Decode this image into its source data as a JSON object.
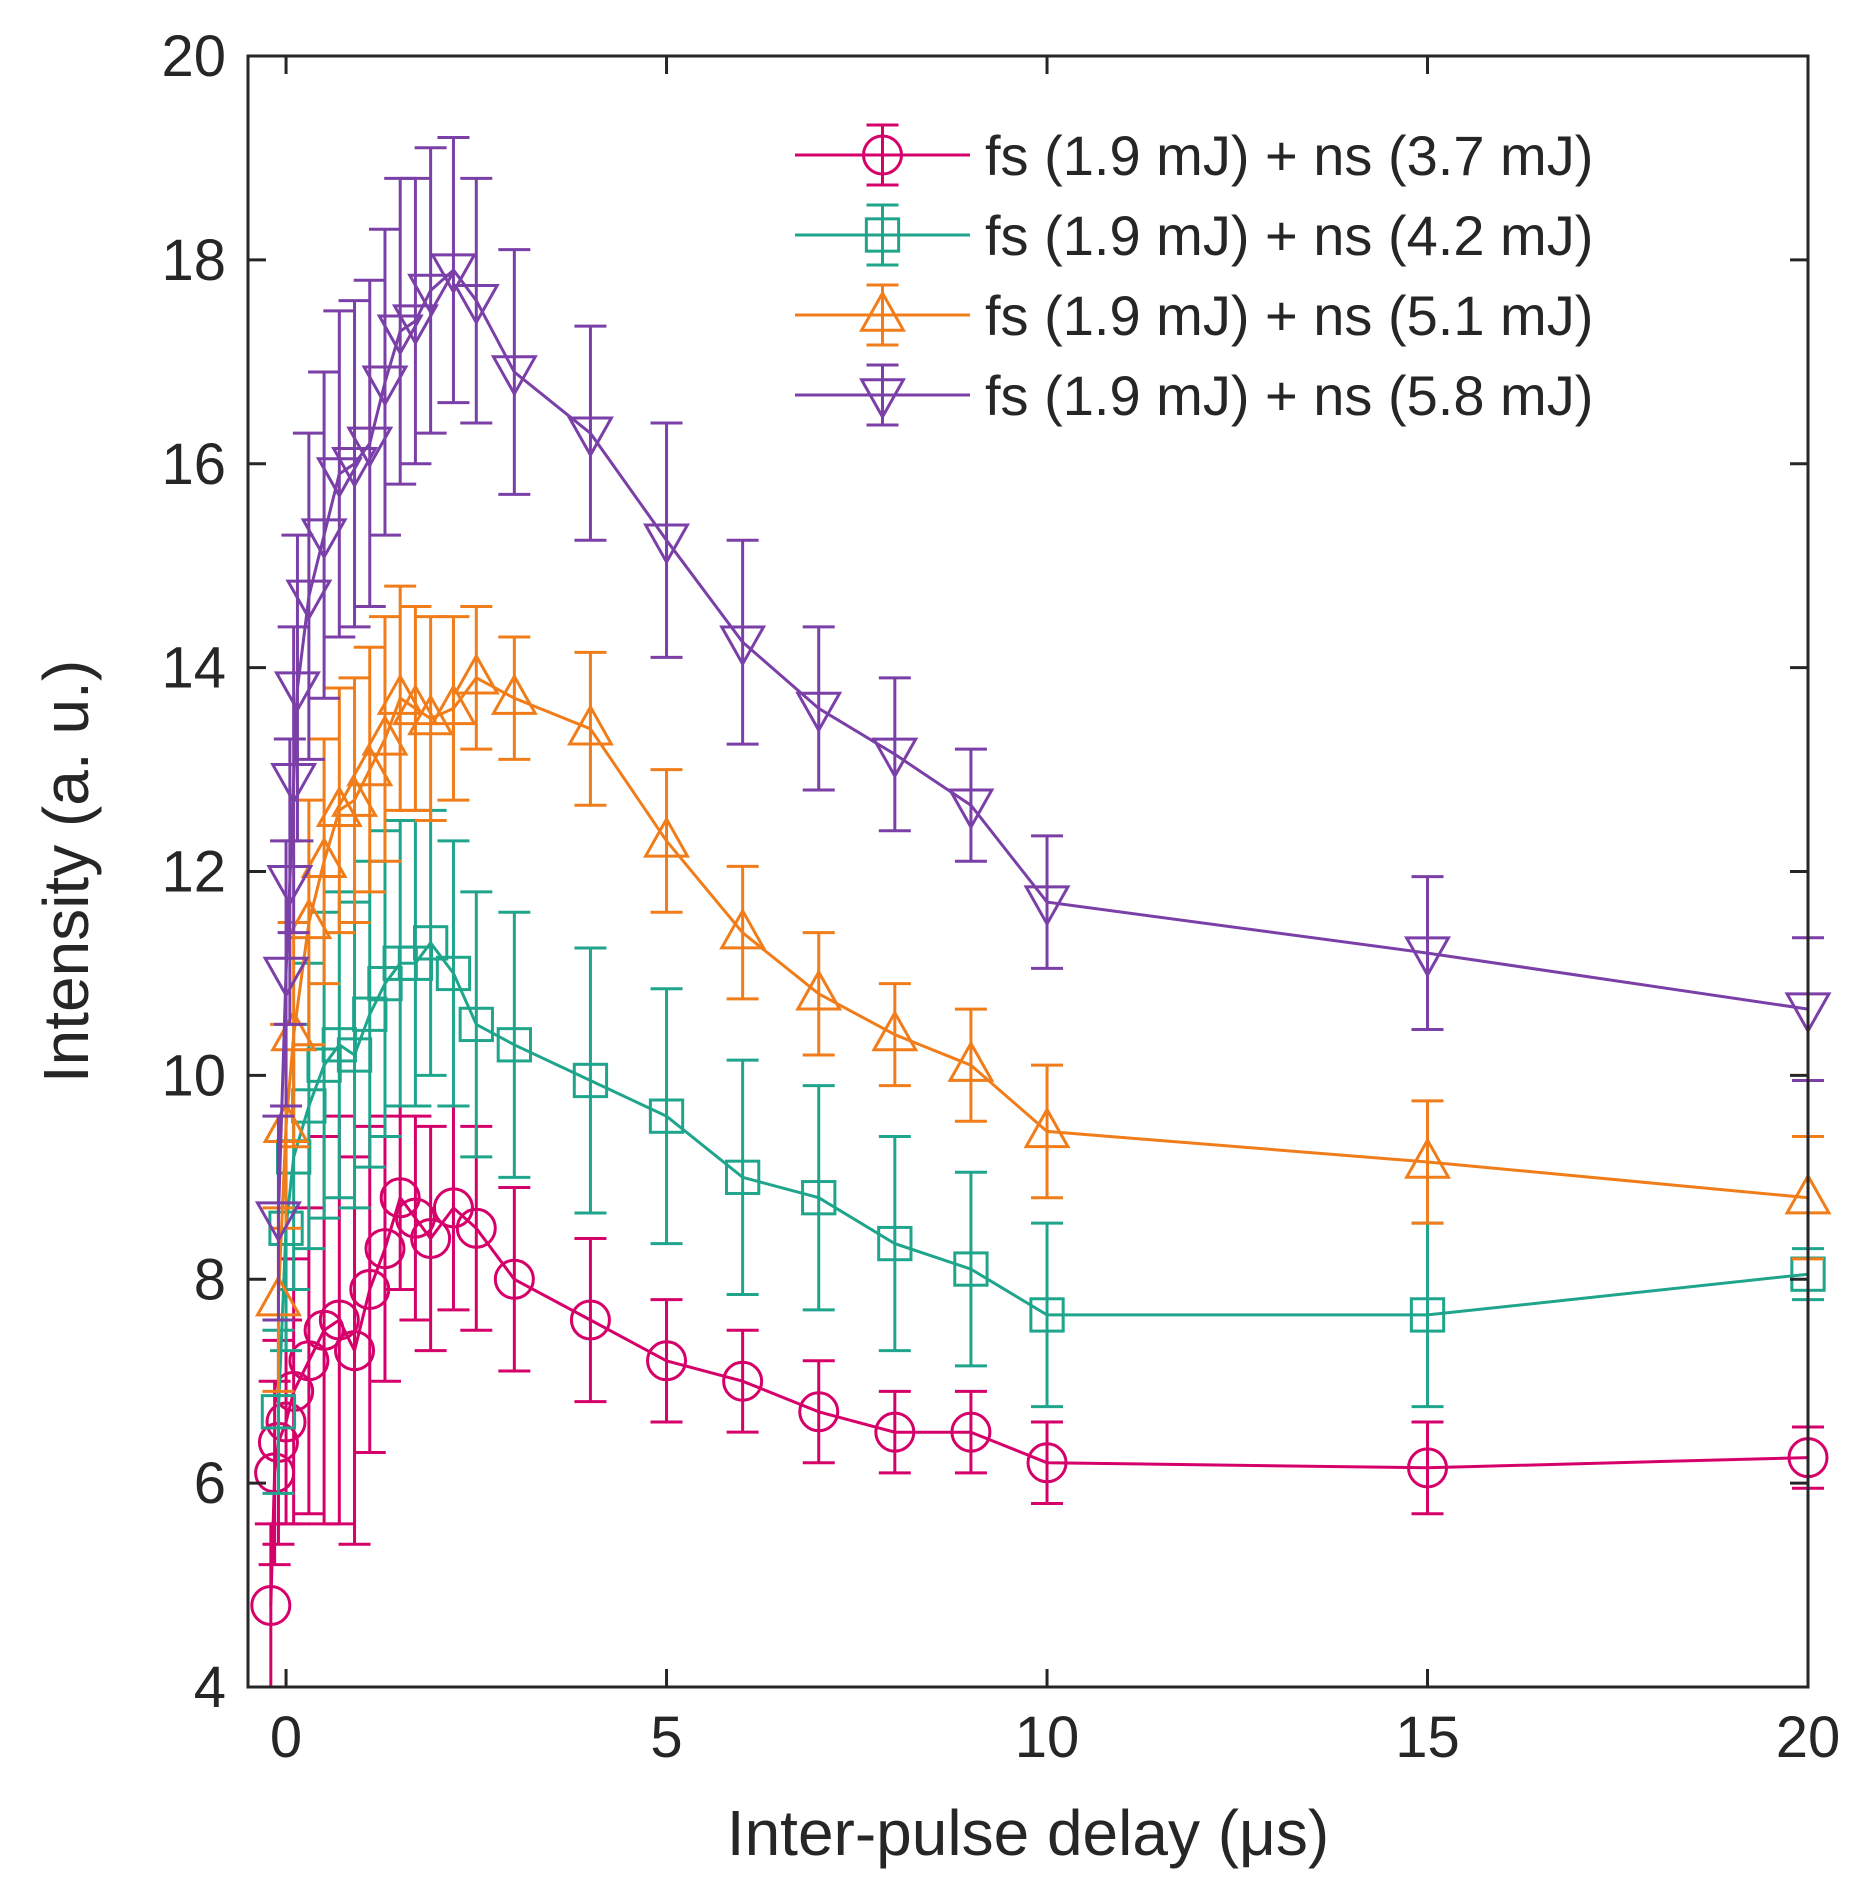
{
  "chart_data": {
    "type": "line",
    "title": "",
    "xlabel": "Inter-pulse delay (μs)",
    "ylabel": "Intensity (a. u.)",
    "xlim": [
      -0.5,
      20
    ],
    "ylim": [
      4,
      20
    ],
    "xticks": [
      0,
      5,
      10,
      15,
      20
    ],
    "yticks": [
      4,
      6,
      8,
      10,
      12,
      14,
      16,
      18,
      20
    ],
    "grid": false,
    "legend_position": "top-right",
    "series": [
      {
        "name": "fs (1.9 mJ) + ns (3.7 mJ)",
        "color": "#d6006a",
        "marker": "circle",
        "points": [
          {
            "x": -0.2,
            "y": 4.8,
            "err": 0.8
          },
          {
            "x": -0.15,
            "y": 6.1,
            "err": 0.9
          },
          {
            "x": -0.1,
            "y": 6.4,
            "err": 1.0
          },
          {
            "x": 0.0,
            "y": 6.6,
            "err": 1.0
          },
          {
            "x": 0.1,
            "y": 6.9,
            "err": 1.3
          },
          {
            "x": 0.3,
            "y": 7.2,
            "err": 1.5
          },
          {
            "x": 0.5,
            "y": 7.5,
            "err": 1.9
          },
          {
            "x": 0.7,
            "y": 7.6,
            "err": 2.0
          },
          {
            "x": 0.9,
            "y": 7.3,
            "err": 1.9
          },
          {
            "x": 1.1,
            "y": 7.9,
            "err": 1.6
          },
          {
            "x": 1.3,
            "y": 8.3,
            "err": 1.3
          },
          {
            "x": 1.5,
            "y": 8.8,
            "err": 0.9
          },
          {
            "x": 1.7,
            "y": 8.6,
            "err": 1.0
          },
          {
            "x": 1.9,
            "y": 8.4,
            "err": 1.1
          },
          {
            "x": 2.2,
            "y": 8.7,
            "err": 1.0
          },
          {
            "x": 2.5,
            "y": 8.5,
            "err": 1.0
          },
          {
            "x": 3.0,
            "y": 8.0,
            "err": 0.9
          },
          {
            "x": 4.0,
            "y": 7.6,
            "err": 0.8
          },
          {
            "x": 5.0,
            "y": 7.2,
            "err": 0.6
          },
          {
            "x": 6.0,
            "y": 7.0,
            "err": 0.5
          },
          {
            "x": 7.0,
            "y": 6.7,
            "err": 0.5
          },
          {
            "x": 8.0,
            "y": 6.5,
            "err": 0.4
          },
          {
            "x": 9.0,
            "y": 6.5,
            "err": 0.4
          },
          {
            "x": 10.0,
            "y": 6.2,
            "err": 0.4
          },
          {
            "x": 15.0,
            "y": 6.15,
            "err": 0.45
          },
          {
            "x": 20.0,
            "y": 6.25,
            "err": 0.3
          }
        ]
      },
      {
        "name": "fs (1.9 mJ) + ns (4.2 mJ)",
        "color": "#1fa58c",
        "marker": "square",
        "points": [
          {
            "x": -0.1,
            "y": 6.7,
            "err": 0.8
          },
          {
            "x": 0.0,
            "y": 8.5,
            "err": 1.2
          },
          {
            "x": 0.1,
            "y": 9.2,
            "err": 1.3
          },
          {
            "x": 0.3,
            "y": 9.7,
            "err": 1.4
          },
          {
            "x": 0.5,
            "y": 10.1,
            "err": 1.5
          },
          {
            "x": 0.7,
            "y": 10.3,
            "err": 1.5
          },
          {
            "x": 0.9,
            "y": 10.2,
            "err": 1.5
          },
          {
            "x": 1.1,
            "y": 10.6,
            "err": 1.5
          },
          {
            "x": 1.3,
            "y": 10.9,
            "err": 1.5
          },
          {
            "x": 1.5,
            "y": 11.1,
            "err": 1.4
          },
          {
            "x": 1.7,
            "y": 11.1,
            "err": 1.4
          },
          {
            "x": 1.9,
            "y": 11.3,
            "err": 1.3
          },
          {
            "x": 2.2,
            "y": 11.0,
            "err": 1.3
          },
          {
            "x": 2.5,
            "y": 10.5,
            "err": 1.3
          },
          {
            "x": 3.0,
            "y": 10.3,
            "err": 1.3
          },
          {
            "x": 4.0,
            "y": 9.95,
            "err": 1.3
          },
          {
            "x": 5.0,
            "y": 9.6,
            "err": 1.25
          },
          {
            "x": 6.0,
            "y": 9.0,
            "err": 1.15
          },
          {
            "x": 7.0,
            "y": 8.8,
            "err": 1.1
          },
          {
            "x": 8.0,
            "y": 8.35,
            "err": 1.05
          },
          {
            "x": 9.0,
            "y": 8.1,
            "err": 0.95
          },
          {
            "x": 10.0,
            "y": 7.65,
            "err": 0.9
          },
          {
            "x": 15.0,
            "y": 7.65,
            "err": 0.9
          },
          {
            "x": 20.0,
            "y": 8.05,
            "err": 0.25
          }
        ]
      },
      {
        "name": "fs (1.9 mJ) + ns (5.1 mJ)",
        "color": "#f07d1a",
        "marker": "triangle-up",
        "points": [
          {
            "x": -0.1,
            "y": 7.8,
            "err": 0.9
          },
          {
            "x": 0.0,
            "y": 9.5,
            "err": 1.0
          },
          {
            "x": 0.1,
            "y": 10.4,
            "err": 1.1
          },
          {
            "x": 0.3,
            "y": 11.5,
            "err": 1.2
          },
          {
            "x": 0.5,
            "y": 12.1,
            "err": 1.2
          },
          {
            "x": 0.7,
            "y": 12.6,
            "err": 1.2
          },
          {
            "x": 0.9,
            "y": 12.7,
            "err": 1.2
          },
          {
            "x": 1.1,
            "y": 13.0,
            "err": 1.2
          },
          {
            "x": 1.3,
            "y": 13.3,
            "err": 1.2
          },
          {
            "x": 1.5,
            "y": 13.7,
            "err": 1.1
          },
          {
            "x": 1.7,
            "y": 13.6,
            "err": 1.0
          },
          {
            "x": 1.9,
            "y": 13.5,
            "err": 1.0
          },
          {
            "x": 2.2,
            "y": 13.6,
            "err": 0.9
          },
          {
            "x": 2.5,
            "y": 13.9,
            "err": 0.7
          },
          {
            "x": 3.0,
            "y": 13.7,
            "err": 0.6
          },
          {
            "x": 4.0,
            "y": 13.4,
            "err": 0.75
          },
          {
            "x": 5.0,
            "y": 12.3,
            "err": 0.7
          },
          {
            "x": 6.0,
            "y": 11.4,
            "err": 0.65
          },
          {
            "x": 7.0,
            "y": 10.8,
            "err": 0.6
          },
          {
            "x": 8.0,
            "y": 10.4,
            "err": 0.5
          },
          {
            "x": 9.0,
            "y": 10.1,
            "err": 0.55
          },
          {
            "x": 10.0,
            "y": 9.45,
            "err": 0.65
          },
          {
            "x": 15.0,
            "y": 9.15,
            "err": 0.6
          },
          {
            "x": 20.0,
            "y": 8.8,
            "err": 0.6
          }
        ]
      },
      {
        "name": "fs (1.9 mJ) + ns (5.8 mJ)",
        "color": "#7b3fa8",
        "marker": "triangle-down",
        "points": [
          {
            "x": -0.1,
            "y": 8.6,
            "err": 1.0
          },
          {
            "x": 0.0,
            "y": 11.0,
            "err": 1.3
          },
          {
            "x": 0.05,
            "y": 11.9,
            "err": 1.4
          },
          {
            "x": 0.1,
            "y": 12.9,
            "err": 1.5
          },
          {
            "x": 0.15,
            "y": 13.8,
            "err": 1.5
          },
          {
            "x": 0.3,
            "y": 14.7,
            "err": 1.6
          },
          {
            "x": 0.5,
            "y": 15.3,
            "err": 1.6
          },
          {
            "x": 0.7,
            "y": 15.9,
            "err": 1.6
          },
          {
            "x": 0.9,
            "y": 16.0,
            "err": 1.6
          },
          {
            "x": 1.1,
            "y": 16.2,
            "err": 1.6
          },
          {
            "x": 1.3,
            "y": 16.8,
            "err": 1.5
          },
          {
            "x": 1.5,
            "y": 17.3,
            "err": 1.5
          },
          {
            "x": 1.7,
            "y": 17.4,
            "err": 1.4
          },
          {
            "x": 1.9,
            "y": 17.7,
            "err": 1.4
          },
          {
            "x": 2.2,
            "y": 17.9,
            "err": 1.3
          },
          {
            "x": 2.5,
            "y": 17.6,
            "err": 1.2
          },
          {
            "x": 3.0,
            "y": 16.9,
            "err": 1.2
          },
          {
            "x": 4.0,
            "y": 16.3,
            "err": 1.05
          },
          {
            "x": 5.0,
            "y": 15.25,
            "err": 1.15
          },
          {
            "x": 6.0,
            "y": 14.25,
            "err": 1.0
          },
          {
            "x": 7.0,
            "y": 13.6,
            "err": 0.8
          },
          {
            "x": 8.0,
            "y": 13.15,
            "err": 0.75
          },
          {
            "x": 9.0,
            "y": 12.65,
            "err": 0.55
          },
          {
            "x": 10.0,
            "y": 11.7,
            "err": 0.65
          },
          {
            "x": 15.0,
            "y": 11.2,
            "err": 0.75
          },
          {
            "x": 20.0,
            "y": 10.65,
            "err": 0.7
          }
        ]
      }
    ]
  }
}
